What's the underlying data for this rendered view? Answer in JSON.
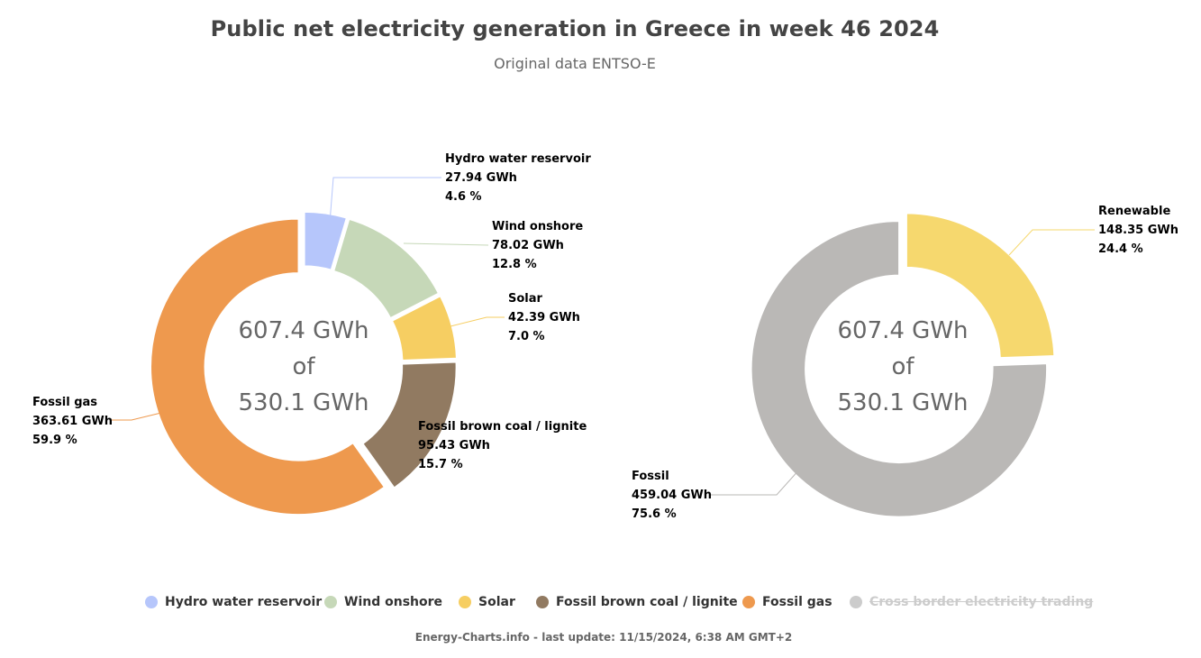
{
  "title": "Public net electricity generation in Greece in week 46 2024",
  "subtitle": "Original data ENTSO-E",
  "footer": "Energy-Charts.info - last update: 11/15/2024, 6:38 AM GMT+2",
  "legend": [
    {
      "label": "Hydro water reservoir",
      "color": "#b6c6fb",
      "hidden": false
    },
    {
      "label": "Wind onshore",
      "color": "#c6d8b8",
      "hidden": false
    },
    {
      "label": "Solar",
      "color": "#f6ce62",
      "hidden": false
    },
    {
      "label": "Fossil brown coal / lignite",
      "color": "#917a61",
      "hidden": false
    },
    {
      "label": "Fossil gas",
      "color": "#ee994e",
      "hidden": false
    },
    {
      "label": "Cross border electricity trading",
      "color": "#cccccc",
      "hidden": true
    }
  ],
  "chart_data": [
    {
      "type": "pie",
      "center_text": [
        "607.4 GWh",
        "of",
        "530.1 GWh"
      ],
      "unit": "GWh",
      "slices": [
        {
          "name": "Hydro water reservoir",
          "value": 27.94,
          "value_label": "27.94 GWh",
          "percent_label": "4.6 %",
          "color": "#b6c6fb"
        },
        {
          "name": "Wind onshore",
          "value": 78.02,
          "value_label": "78.02 GWh",
          "percent_label": "12.8 %",
          "color": "#c6d8b8"
        },
        {
          "name": "Solar",
          "value": 42.39,
          "value_label": "42.39 GWh",
          "percent_label": "7.0 %",
          "color": "#f6ce62"
        },
        {
          "name": "Fossil brown coal / lignite",
          "value": 95.43,
          "value_label": "95.43 GWh",
          "percent_label": "15.7 %",
          "color": "#917a61"
        },
        {
          "name": "Fossil gas",
          "value": 363.61,
          "value_label": "363.61 GWh",
          "percent_label": "59.9 %",
          "color": "#ee994e"
        }
      ]
    },
    {
      "type": "pie",
      "center_text": [
        "607.4 GWh",
        "of",
        "530.1 GWh"
      ],
      "unit": "GWh",
      "slices": [
        {
          "name": "Renewable",
          "value": 148.35,
          "value_label": "148.35 GWh",
          "percent_label": "24.4 %",
          "color": "#f6d86e"
        },
        {
          "name": "Fossil",
          "value": 459.04,
          "value_label": "459.04 GWh",
          "percent_label": "75.6 %",
          "color": "#bab8b6"
        }
      ]
    }
  ]
}
